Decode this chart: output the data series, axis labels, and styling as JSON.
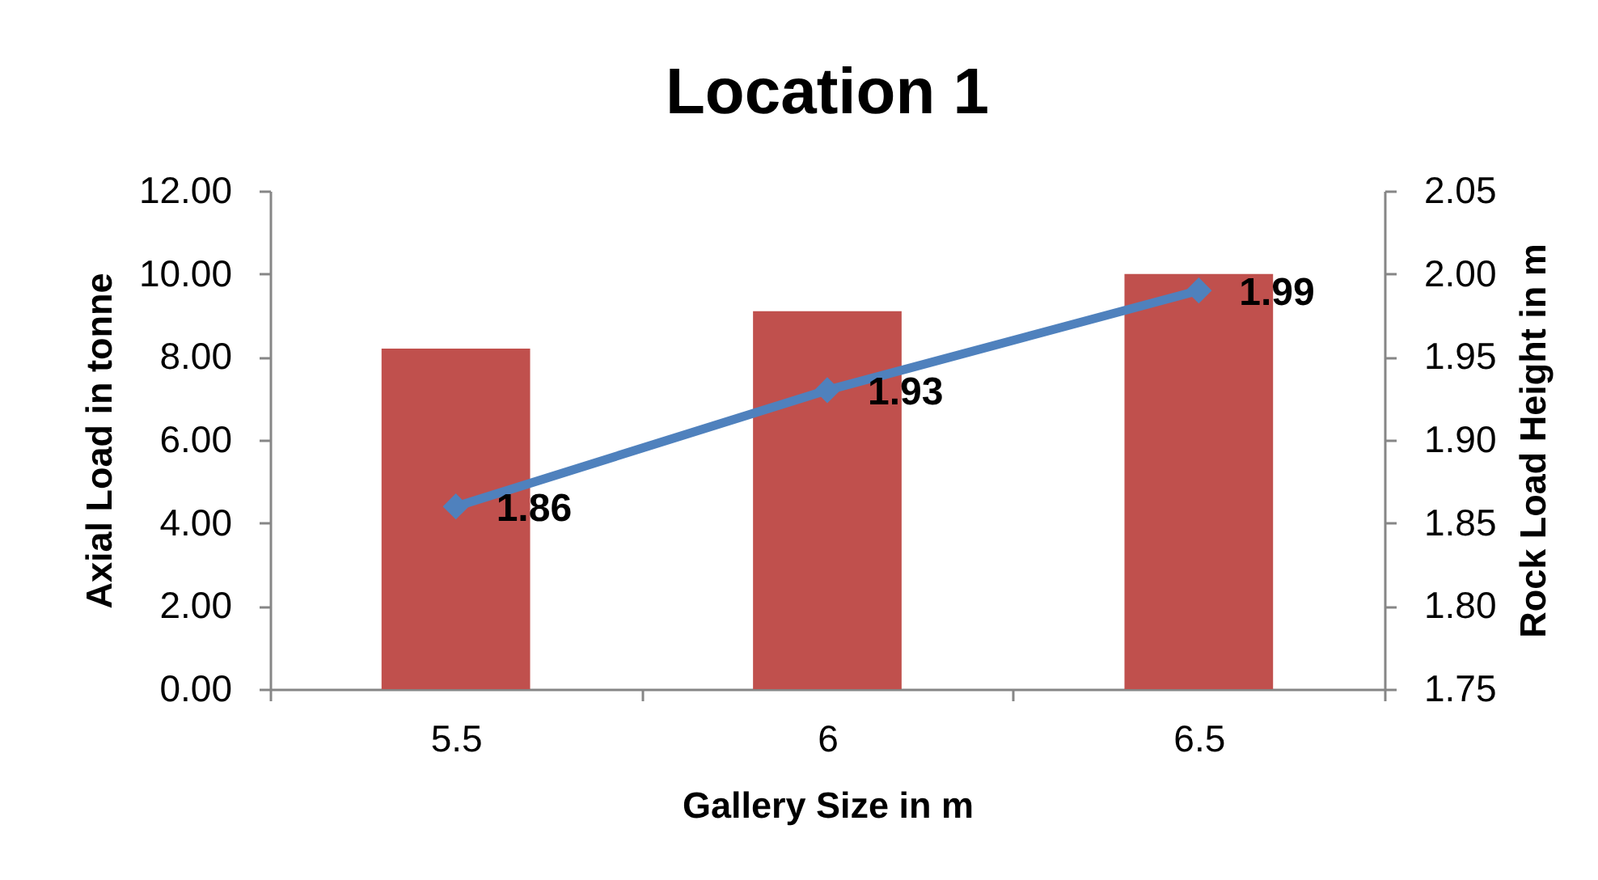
{
  "chart_data": {
    "type": "bar",
    "title": "Location 1",
    "xlabel": "Gallery Size in m",
    "ylabel": "Axial Load in tonne",
    "y2label": "Rock Load Height in m",
    "categories": [
      "5.5",
      "6",
      "6.5"
    ],
    "series": [
      {
        "color": "#c0504d",
        "values": [
          8.2,
          9.1,
          10.0
        ]
      },
      {
        "type": "line",
        "axis": "y2",
        "color": "#4f81bd",
        "values": [
          1.86,
          1.93,
          1.99
        ],
        "marker": "diamond",
        "data_labels": true
      }
    ],
    "ylim": [
      0,
      12
    ],
    "yticks": [
      {
        "value": 0,
        "label": "0.00"
      },
      {
        "value": 2,
        "label": "2.00"
      },
      {
        "value": 4,
        "label": "4.00"
      },
      {
        "value": 6,
        "label": "6.00"
      },
      {
        "value": 8,
        "label": "8.00"
      },
      {
        "value": 10,
        "label": "10.00"
      },
      {
        "value": 12,
        "label": "12.00"
      }
    ],
    "y2lim": [
      1.75,
      2.05
    ],
    "y2ticks": [
      1.75,
      {
        "value": 1.8,
        "label": "1.80"
      },
      1.85,
      {
        "value": 1.9,
        "label": "1.90"
      },
      1.95,
      {
        "value": 2.0,
        "label": "2.00"
      },
      2.05
    ],
    "grid": false
  }
}
